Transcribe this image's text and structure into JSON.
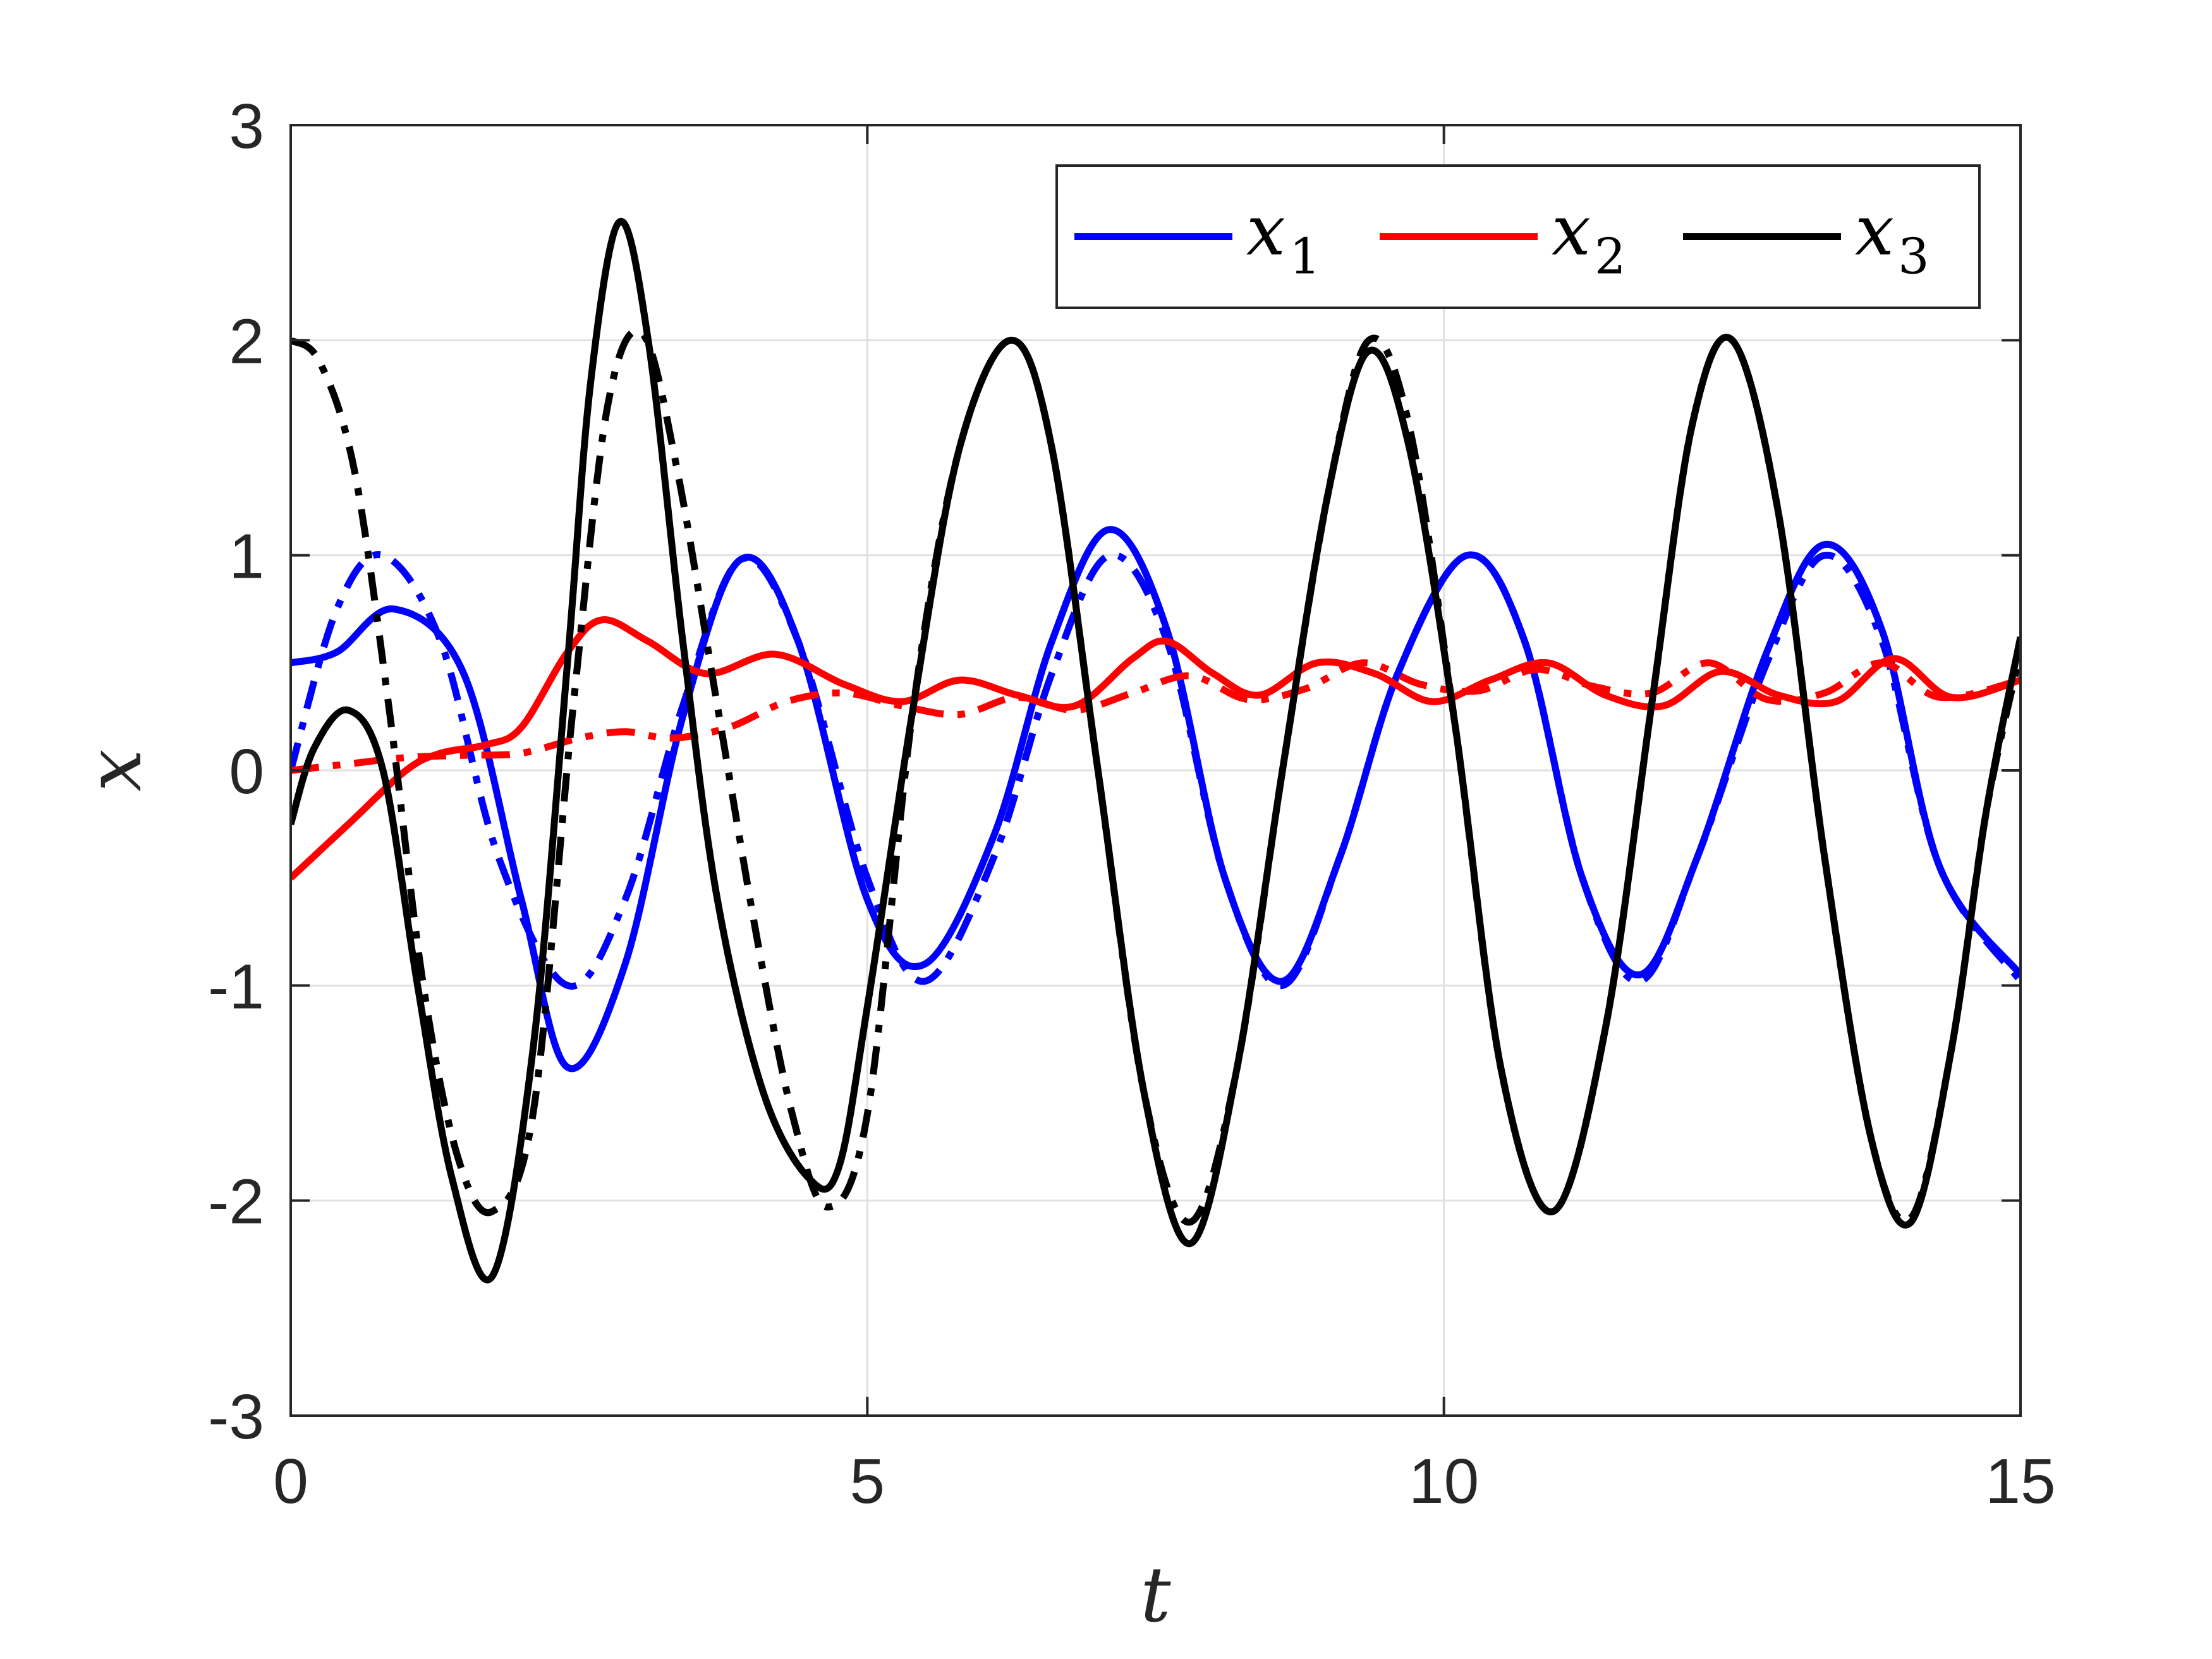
{
  "chart_data": {
    "type": "line",
    "xlabel": "t",
    "ylabel": "x",
    "xlim": [
      0,
      15
    ],
    "ylim": [
      -3,
      3
    ],
    "xticks": [
      0,
      5,
      10,
      15
    ],
    "yticks": [
      -3,
      -2,
      -1,
      0,
      1,
      2,
      3
    ],
    "grid": true,
    "legend": {
      "placement": "top-right",
      "entries": [
        {
          "base": "x",
          "sub": "1",
          "color": "#0000ff"
        },
        {
          "base": "x",
          "sub": "2",
          "color": "#ff0000"
        },
        {
          "base": "x",
          "sub": "3",
          "color": "#000000"
        }
      ]
    },
    "series": [
      {
        "color": "#0000ff",
        "dash": "solid",
        "x": [
          0,
          0.4,
          0.9,
          1.5,
          2.0,
          2.4,
          2.9,
          3.4,
          3.9,
          4.4,
          5.0,
          5.5,
          6.1,
          6.6,
          7.1,
          7.6,
          8.1,
          8.6,
          9.1,
          9.6,
          10.2,
          10.7,
          11.2,
          11.7,
          12.2,
          12.8,
          13.3,
          13.8,
          14.3,
          15.0
        ],
        "y": [
          0.5,
          0.55,
          0.75,
          0.45,
          -0.6,
          -1.38,
          -0.9,
          0.25,
          0.98,
          0.6,
          -0.6,
          -0.9,
          -0.3,
          0.6,
          1.12,
          0.65,
          -0.5,
          -0.98,
          -0.4,
          0.45,
          1.0,
          0.6,
          -0.5,
          -0.95,
          -0.4,
          0.55,
          1.05,
          0.65,
          -0.45,
          -0.95
        ]
      },
      {
        "color": "#0000ff",
        "dash": "dashdot",
        "x": [
          0,
          0.4,
          0.8,
          1.3,
          1.8,
          2.4,
          2.9,
          3.4,
          3.9,
          4.4,
          5.0,
          5.5,
          6.1,
          6.6,
          7.1,
          7.6,
          8.1,
          8.6,
          9.1,
          9.6,
          10.2,
          10.7,
          11.2,
          11.7,
          12.2,
          12.8,
          13.3,
          13.8,
          14.3,
          15.0
        ],
        "y": [
          0.0,
          0.75,
          1.0,
          0.6,
          -0.4,
          -1.0,
          -0.6,
          0.3,
          0.98,
          0.6,
          -0.5,
          -0.98,
          -0.4,
          0.45,
          1.0,
          0.6,
          -0.5,
          -1.0,
          -0.4,
          0.45,
          1.0,
          0.6,
          -0.5,
          -0.98,
          -0.4,
          0.5,
          1.0,
          0.6,
          -0.45,
          -0.98
        ]
      },
      {
        "color": "#ff0000",
        "dash": "solid",
        "x": [
          0,
          0.5,
          1.0,
          1.3,
          1.7,
          2.0,
          2.4,
          2.7,
          3.1,
          3.6,
          4.2,
          4.8,
          5.3,
          5.8,
          6.3,
          6.8,
          7.3,
          7.6,
          8.0,
          8.4,
          8.9,
          9.4,
          9.9,
          10.4,
          10.9,
          11.4,
          11.9,
          12.4,
          12.9,
          13.4,
          13.9,
          14.4,
          15.0
        ],
        "y": [
          -0.5,
          -0.25,
          0.0,
          0.08,
          0.12,
          0.2,
          0.55,
          0.7,
          0.6,
          0.45,
          0.54,
          0.4,
          0.32,
          0.42,
          0.35,
          0.3,
          0.52,
          0.6,
          0.45,
          0.35,
          0.5,
          0.45,
          0.32,
          0.42,
          0.5,
          0.35,
          0.3,
          0.46,
          0.35,
          0.32,
          0.52,
          0.34,
          0.42
        ]
      },
      {
        "color": "#ff0000",
        "dash": "dashdot",
        "x": [
          0,
          0.5,
          1.0,
          1.5,
          2.0,
          2.5,
          2.9,
          3.3,
          3.8,
          4.3,
          4.8,
          5.3,
          5.8,
          6.3,
          6.8,
          7.3,
          7.8,
          8.3,
          8.8,
          9.3,
          9.8,
          10.3,
          10.8,
          11.3,
          11.8,
          12.3,
          12.8,
          13.3,
          13.8,
          14.3,
          15.0
        ],
        "y": [
          0.0,
          0.03,
          0.06,
          0.07,
          0.08,
          0.15,
          0.18,
          0.15,
          0.2,
          0.32,
          0.36,
          0.3,
          0.26,
          0.34,
          0.28,
          0.36,
          0.44,
          0.33,
          0.38,
          0.5,
          0.4,
          0.37,
          0.47,
          0.39,
          0.36,
          0.5,
          0.33,
          0.36,
          0.5,
          0.34,
          0.42
        ]
      },
      {
        "color": "#000000",
        "dash": "solid",
        "x": [
          0,
          0.2,
          0.5,
          0.8,
          1.1,
          1.4,
          1.75,
          2.1,
          2.4,
          2.6,
          2.85,
          3.1,
          3.4,
          3.7,
          4.1,
          4.5,
          4.75,
          5.0,
          5.4,
          5.8,
          6.25,
          6.6,
          7.0,
          7.4,
          7.8,
          8.2,
          8.6,
          9.0,
          9.35,
          9.7,
          10.1,
          10.5,
          10.95,
          11.4,
          11.8,
          12.15,
          12.5,
          12.9,
          13.3,
          13.7,
          14.05,
          14.4,
          14.7,
          15.0
        ],
        "y": [
          -0.25,
          0.1,
          0.28,
          0.0,
          -1.0,
          -1.9,
          -2.35,
          -1.3,
          0.5,
          1.8,
          2.55,
          2.0,
          0.6,
          -0.6,
          -1.5,
          -1.9,
          -1.85,
          -1.1,
          0.3,
          1.5,
          2.0,
          1.5,
          0.0,
          -1.5,
          -2.2,
          -1.4,
          0.0,
          1.3,
          1.95,
          1.5,
          0.2,
          -1.4,
          -2.05,
          -1.2,
          0.3,
          1.6,
          2.0,
          1.2,
          -0.4,
          -1.7,
          -2.1,
          -1.3,
          -0.2,
          0.62
        ]
      },
      {
        "color": "#000000",
        "dash": "dashdot",
        "x": [
          0,
          0.25,
          0.55,
          0.85,
          1.15,
          1.45,
          1.75,
          2.1,
          2.45,
          2.75,
          3.05,
          3.35,
          3.7,
          4.05,
          4.35,
          4.65,
          5.0,
          5.4,
          5.8,
          6.25,
          6.6,
          7.0,
          7.4,
          7.8,
          8.2,
          8.6,
          9.0,
          9.35,
          9.7,
          10.1,
          10.5,
          10.95,
          11.4,
          11.8,
          12.15,
          12.5,
          12.9,
          13.3,
          13.7,
          14.05,
          14.4,
          14.7,
          15.0
        ],
        "y": [
          2.0,
          1.9,
          1.4,
          0.3,
          -1.0,
          -1.8,
          -2.05,
          -1.6,
          0.3,
          1.7,
          2.03,
          1.4,
          0.3,
          -0.8,
          -1.6,
          -2.03,
          -1.6,
          0.3,
          1.5,
          2.0,
          1.5,
          0.0,
          -1.5,
          -2.1,
          -1.4,
          0.0,
          1.3,
          2.0,
          1.6,
          0.2,
          -1.4,
          -2.05,
          -1.2,
          0.3,
          1.6,
          2.0,
          1.2,
          -0.4,
          -1.7,
          -2.08,
          -1.3,
          -0.2,
          0.55
        ]
      }
    ]
  }
}
